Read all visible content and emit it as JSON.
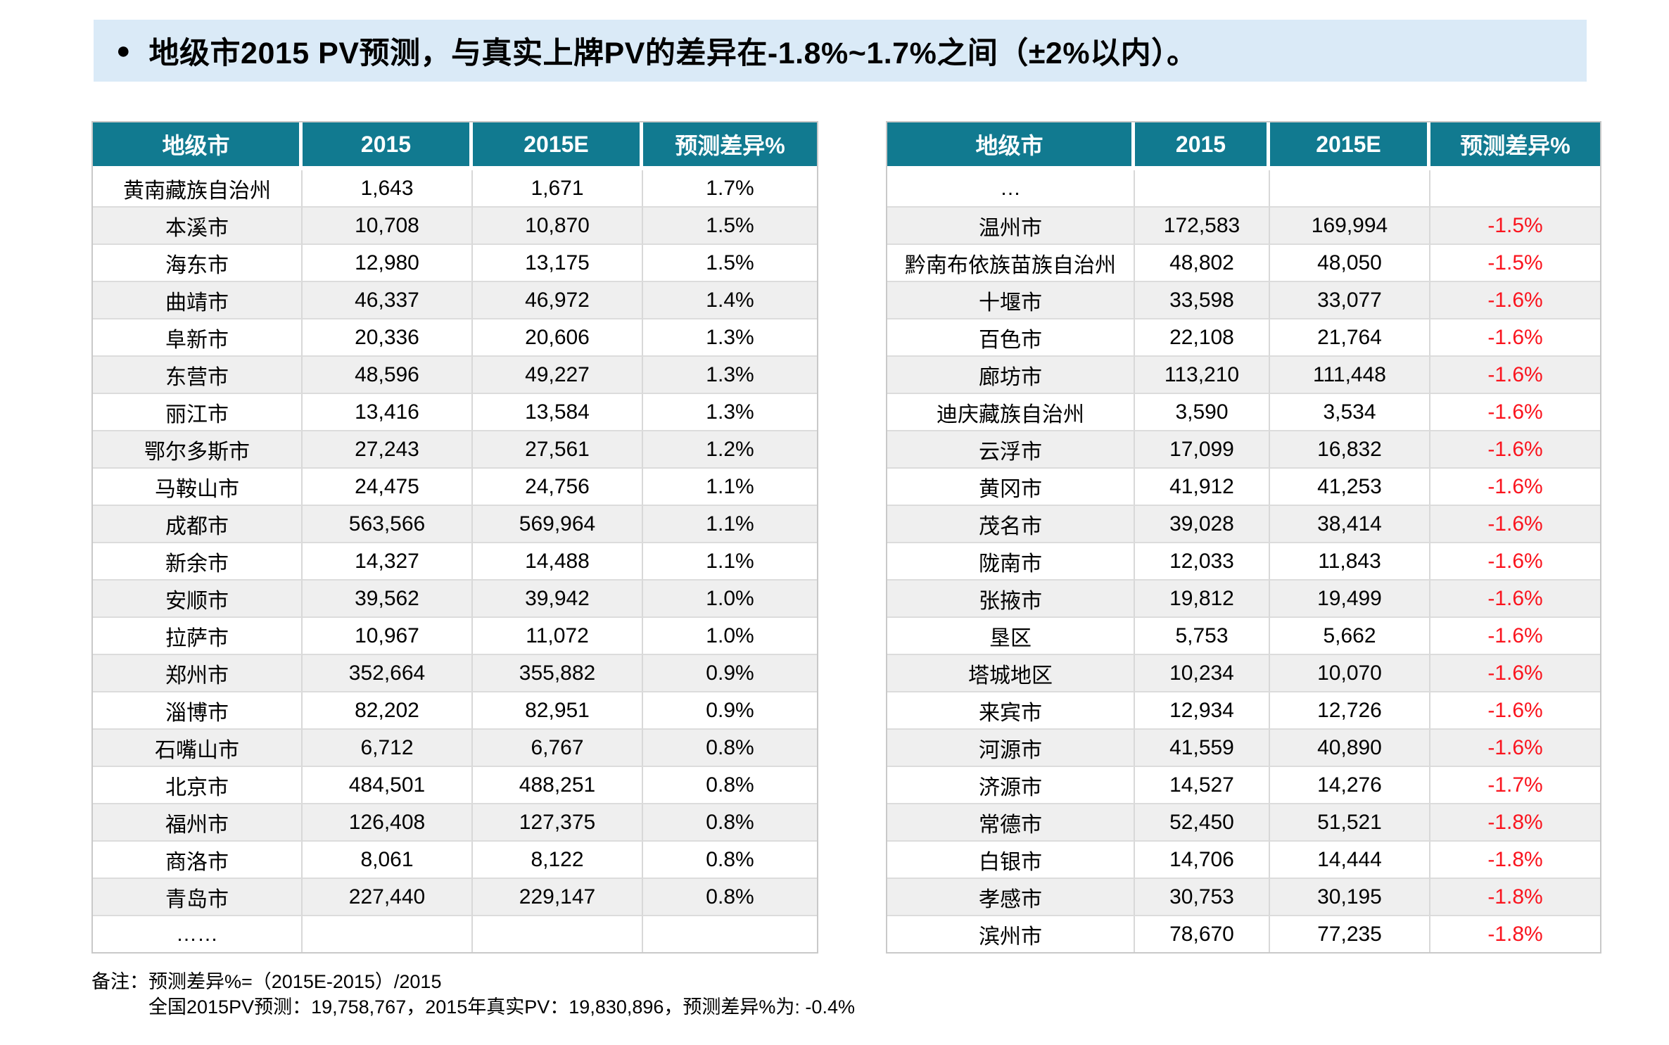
{
  "banner": {
    "bullet": "●",
    "title": "地级市2015 PV预测，与真实上牌PV的差异在-1.8%~1.7%之间（±2%以内）。"
  },
  "tables": {
    "headers": [
      "地级市",
      "2015",
      "2015E",
      "预测差异%"
    ],
    "left": {
      "rows": [
        {
          "city": "黄南藏族自治州",
          "v2015": "1,643",
          "v2015e": "1,671",
          "diff": "1.7%"
        },
        {
          "city": "本溪市",
          "v2015": "10,708",
          "v2015e": "10,870",
          "diff": "1.5%"
        },
        {
          "city": "海东市",
          "v2015": "12,980",
          "v2015e": "13,175",
          "diff": "1.5%"
        },
        {
          "city": "曲靖市",
          "v2015": "46,337",
          "v2015e": "46,972",
          "diff": "1.4%"
        },
        {
          "city": "阜新市",
          "v2015": "20,336",
          "v2015e": "20,606",
          "diff": "1.3%"
        },
        {
          "city": "东营市",
          "v2015": "48,596",
          "v2015e": "49,227",
          "diff": "1.3%"
        },
        {
          "city": "丽江市",
          "v2015": "13,416",
          "v2015e": "13,584",
          "diff": "1.3%"
        },
        {
          "city": "鄂尔多斯市",
          "v2015": "27,243",
          "v2015e": "27,561",
          "diff": "1.2%"
        },
        {
          "city": "马鞍山市",
          "v2015": "24,475",
          "v2015e": "24,756",
          "diff": "1.1%"
        },
        {
          "city": "成都市",
          "v2015": "563,566",
          "v2015e": "569,964",
          "diff": "1.1%"
        },
        {
          "city": "新余市",
          "v2015": "14,327",
          "v2015e": "14,488",
          "diff": "1.1%"
        },
        {
          "city": "安顺市",
          "v2015": "39,562",
          "v2015e": "39,942",
          "diff": "1.0%"
        },
        {
          "city": "拉萨市",
          "v2015": "10,967",
          "v2015e": "11,072",
          "diff": "1.0%"
        },
        {
          "city": "郑州市",
          "v2015": "352,664",
          "v2015e": "355,882",
          "diff": "0.9%"
        },
        {
          "city": "淄博市",
          "v2015": "82,202",
          "v2015e": "82,951",
          "diff": "0.9%"
        },
        {
          "city": "石嘴山市",
          "v2015": "6,712",
          "v2015e": "6,767",
          "diff": "0.8%"
        },
        {
          "city": "北京市",
          "v2015": "484,501",
          "v2015e": "488,251",
          "diff": "0.8%"
        },
        {
          "city": "福州市",
          "v2015": "126,408",
          "v2015e": "127,375",
          "diff": "0.8%"
        },
        {
          "city": "商洛市",
          "v2015": "8,061",
          "v2015e": "8,122",
          "diff": "0.8%"
        },
        {
          "city": "青岛市",
          "v2015": "227,440",
          "v2015e": "229,147",
          "diff": "0.8%"
        },
        {
          "city": "……",
          "v2015": "",
          "v2015e": "",
          "diff": ""
        }
      ]
    },
    "right": {
      "rows": [
        {
          "city": "…",
          "v2015": "",
          "v2015e": "",
          "diff": ""
        },
        {
          "city": "温州市",
          "v2015": "172,583",
          "v2015e": "169,994",
          "diff": "-1.5%"
        },
        {
          "city": "黔南布依族苗族自治州",
          "v2015": "48,802",
          "v2015e": "48,050",
          "diff": "-1.5%"
        },
        {
          "city": "十堰市",
          "v2015": "33,598",
          "v2015e": "33,077",
          "diff": "-1.6%"
        },
        {
          "city": "百色市",
          "v2015": "22,108",
          "v2015e": "21,764",
          "diff": "-1.6%"
        },
        {
          "city": "廊坊市",
          "v2015": "113,210",
          "v2015e": "111,448",
          "diff": "-1.6%"
        },
        {
          "city": "迪庆藏族自治州",
          "v2015": "3,590",
          "v2015e": "3,534",
          "diff": "-1.6%"
        },
        {
          "city": "云浮市",
          "v2015": "17,099",
          "v2015e": "16,832",
          "diff": "-1.6%"
        },
        {
          "city": "黄冈市",
          "v2015": "41,912",
          "v2015e": "41,253",
          "diff": "-1.6%"
        },
        {
          "city": "茂名市",
          "v2015": "39,028",
          "v2015e": "38,414",
          "diff": "-1.6%"
        },
        {
          "city": "陇南市",
          "v2015": "12,033",
          "v2015e": "11,843",
          "diff": "-1.6%"
        },
        {
          "city": "张掖市",
          "v2015": "19,812",
          "v2015e": "19,499",
          "diff": "-1.6%"
        },
        {
          "city": "垦区",
          "v2015": "5,753",
          "v2015e": "5,662",
          "diff": "-1.6%"
        },
        {
          "city": "塔城地区",
          "v2015": "10,234",
          "v2015e": "10,070",
          "diff": "-1.6%"
        },
        {
          "city": "来宾市",
          "v2015": "12,934",
          "v2015e": "12,726",
          "diff": "-1.6%"
        },
        {
          "city": "河源市",
          "v2015": "41,559",
          "v2015e": "40,890",
          "diff": "-1.6%"
        },
        {
          "city": "济源市",
          "v2015": "14,527",
          "v2015e": "14,276",
          "diff": "-1.7%"
        },
        {
          "city": "常德市",
          "v2015": "52,450",
          "v2015e": "51,521",
          "diff": "-1.8%"
        },
        {
          "city": "白银市",
          "v2015": "14,706",
          "v2015e": "14,444",
          "diff": "-1.8%"
        },
        {
          "city": "孝感市",
          "v2015": "30,753",
          "v2015e": "30,195",
          "diff": "-1.8%"
        },
        {
          "city": "滨州市",
          "v2015": "78,670",
          "v2015e": "77,235",
          "diff": "-1.8%"
        }
      ]
    }
  },
  "footnote": {
    "label": "备注：",
    "line1": "预测差异%=（2015E-2015）/2015",
    "line2": "全国2015PV预测：19,758,767，2015年真实PV：19,830,896，预测差异%为: -0.4%"
  },
  "colors": {
    "header_teal": "#117A90",
    "banner_bg": "#DAEAF7",
    "row_alt": "#EFEFEF",
    "negative_red": "#FA141E"
  }
}
